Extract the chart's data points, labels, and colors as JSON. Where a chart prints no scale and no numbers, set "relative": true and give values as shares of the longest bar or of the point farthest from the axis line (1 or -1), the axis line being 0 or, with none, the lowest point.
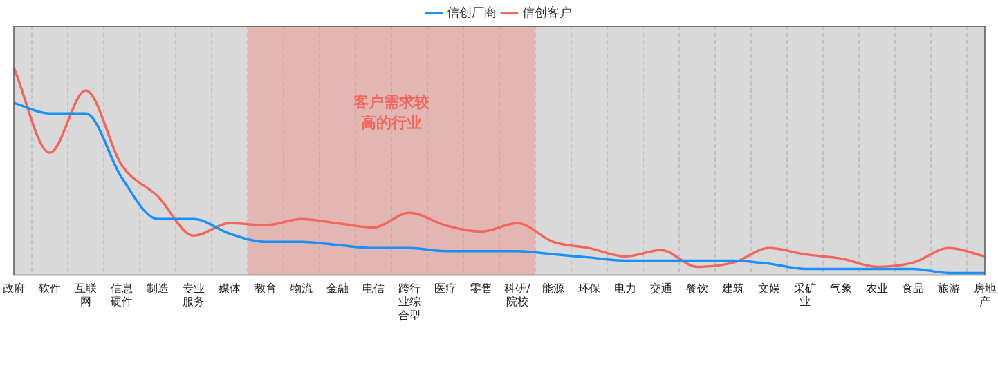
{
  "chart_data": {
    "type": "line",
    "relative": true,
    "legend": "top",
    "grid": "x",
    "marker": "none",
    "line_style": "solid",
    "categories": [
      "政府",
      "软件",
      "互联网",
      "信息硬件",
      "制造",
      "专业服务",
      "媒体",
      "教育",
      "物流",
      "金融",
      "电信",
      "跨行业综合型",
      "医疗",
      "零售",
      "科研/院校",
      "能源",
      "环保",
      "电力",
      "交通",
      "餐饮",
      "建筑",
      "文娱",
      "采矿业",
      "气象",
      "农业",
      "食品",
      "旅游",
      "房地产"
    ],
    "series": [
      {
        "name": "信创厂商",
        "color": "#1890ff",
        "values": [
          0.83,
          0.78,
          0.78,
          0.47,
          0.27,
          0.27,
          0.2,
          0.16,
          0.16,
          0.145,
          0.13,
          0.13,
          0.115,
          0.115,
          0.115,
          0.1,
          0.085,
          0.07,
          0.07,
          0.07,
          0.07,
          0.055,
          0.03,
          0.03,
          0.03,
          0.03,
          0.01,
          0.01
        ]
      },
      {
        "name": "信创客户",
        "color": "#f4665c",
        "values": [
          1,
          0.59,
          0.89,
          0.53,
          0.38,
          0.19,
          0.25,
          0.24,
          0.27,
          0.25,
          0.23,
          0.3,
          0.24,
          0.21,
          0.25,
          0.16,
          0.13,
          0.09,
          0.12,
          0.04,
          0.06,
          0.13,
          0.1,
          0.08,
          0.04,
          0.06,
          0.13,
          0.09
        ]
      }
    ],
    "bands": [
      {
        "axis": "x",
        "from": "教育",
        "to": "科研/院校",
        "label": "客户需求较高的行业",
        "color": "#f4665c"
      }
    ]
  }
}
